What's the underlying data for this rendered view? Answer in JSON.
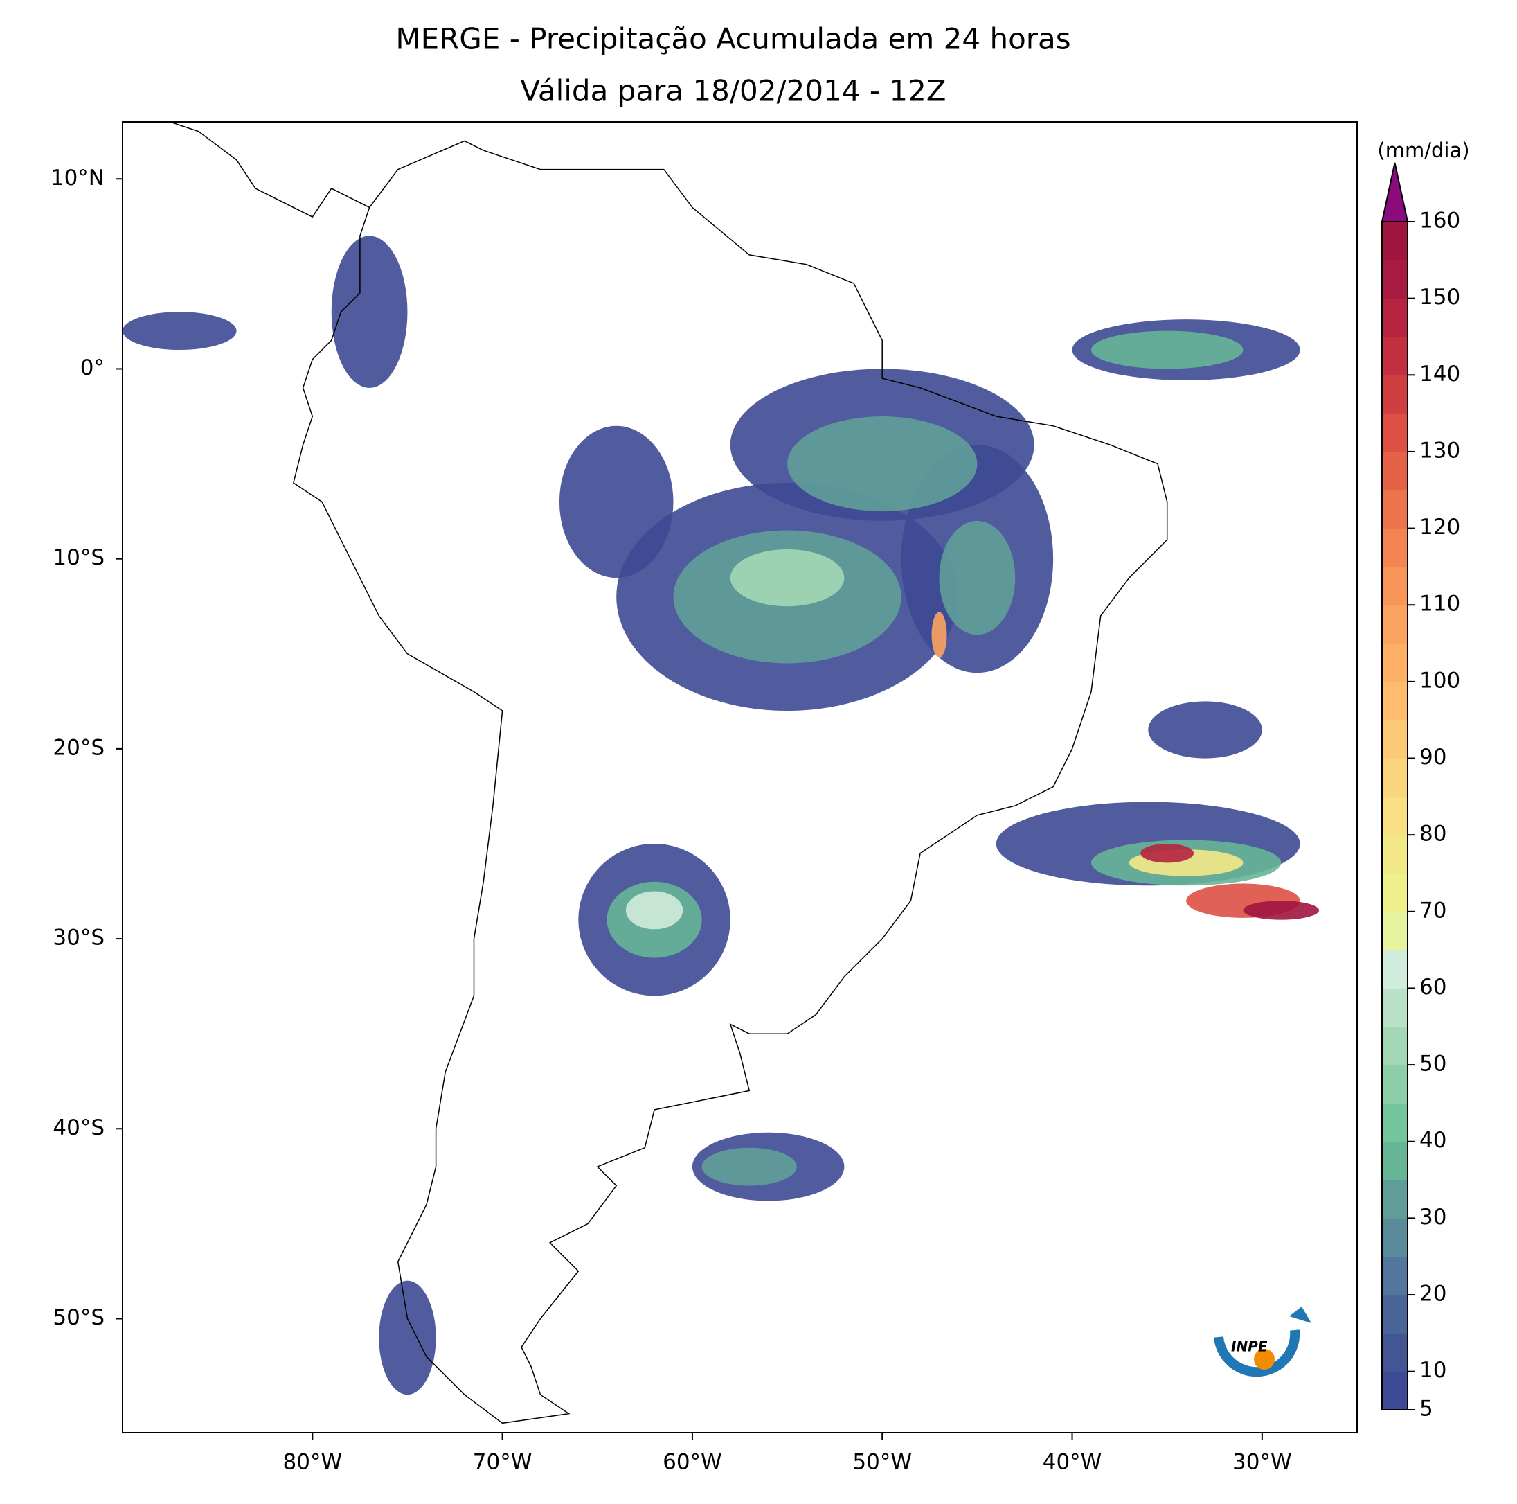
{
  "map": {
    "title": "MERGE - Precipitação Acumulada em 24 horas",
    "subtitle": "Válida para 18/02/2014 - 12Z",
    "lonlim": [
      -90,
      -25
    ],
    "latlim": [
      -56,
      13
    ],
    "xticks": [
      {
        "value": -80,
        "label": "80°W"
      },
      {
        "value": -70,
        "label": "70°W"
      },
      {
        "value": -60,
        "label": "60°W"
      },
      {
        "value": -50,
        "label": "50°W"
      },
      {
        "value": -40,
        "label": "40°W"
      },
      {
        "value": -30,
        "label": "30°W"
      }
    ],
    "yticks": [
      {
        "value": 10,
        "label": "10°N"
      },
      {
        "value": 0,
        "label": "0°"
      },
      {
        "value": -10,
        "label": "10°S"
      },
      {
        "value": -20,
        "label": "20°S"
      },
      {
        "value": -30,
        "label": "30°S"
      },
      {
        "value": -40,
        "label": "40°S"
      },
      {
        "value": -50,
        "label": "50°S"
      }
    ],
    "colorbar": {
      "label": "(mm/dia)",
      "levels": [
        5,
        10,
        15,
        20,
        25,
        30,
        35,
        40,
        45,
        50,
        55,
        60,
        65,
        70,
        75,
        80,
        85,
        90,
        95,
        100,
        105,
        110,
        115,
        120,
        125,
        130,
        135,
        140,
        145,
        150,
        155,
        160
      ],
      "colors": [
        "#3d4a94",
        "#435693",
        "#4a6598",
        "#53769c",
        "#5a8b9b",
        "#5f9e98",
        "#66b596",
        "#74c79c",
        "#8dd0a8",
        "#a3d8b5",
        "#b9e1c7",
        "#d1ebdc",
        "#e6f59d",
        "#eef08b",
        "#f3e888",
        "#f7df82",
        "#fad57c",
        "#fcc975",
        "#fdbd6d",
        "#fdb066",
        "#fba45f",
        "#f89559",
        "#f48552",
        "#ee744c",
        "#e66247",
        "#dd5042",
        "#d03f40",
        "#c2303f",
        "#b5233f",
        "#a81a40",
        "#a01540"
      ],
      "extend_color": "#8b0a7c",
      "ticks": [
        5,
        10,
        20,
        30,
        40,
        50,
        60,
        70,
        80,
        90,
        100,
        110,
        120,
        130,
        140,
        150,
        160
      ]
    },
    "logo_text": "INPE"
  }
}
